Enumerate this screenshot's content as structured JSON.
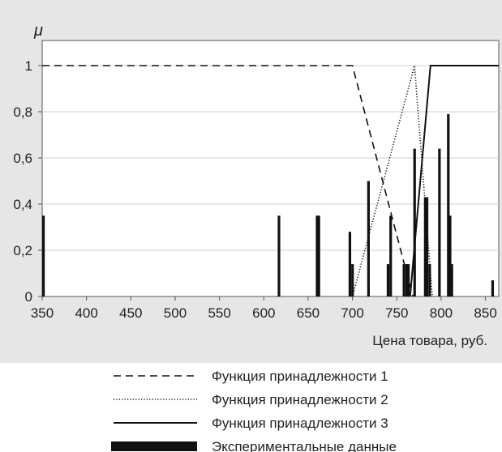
{
  "chart_data": {
    "type": "line",
    "ylabel": "μ",
    "xlabel": "Цена товара, руб.",
    "xlim": [
      350,
      865
    ],
    "ylim": [
      0,
      1.05
    ],
    "x_ticks": [
      350,
      400,
      450,
      500,
      550,
      600,
      650,
      700,
      750,
      800,
      850
    ],
    "y_ticks": [
      {
        "value": 0,
        "label": "0"
      },
      {
        "value": 0.2,
        "label": "0,2"
      },
      {
        "value": 0.4,
        "label": "0,4"
      },
      {
        "value": 0.6,
        "label": "0,6"
      },
      {
        "value": 0.8,
        "label": "0,8"
      },
      {
        "value": 1,
        "label": "1"
      }
    ],
    "grid": "horizontal",
    "legend_position": "bottom",
    "series": [
      {
        "name": "Функция принадлежности 1",
        "style": "dashed",
        "x": [
          350,
          700,
          768
        ],
        "y": [
          1,
          1,
          0
        ]
      },
      {
        "name": "Функция принадлежности 2",
        "style": "dotted",
        "x": [
          700,
          770,
          790
        ],
        "y": [
          0,
          1,
          0
        ]
      },
      {
        "name": "Функция принадлежности 3",
        "style": "solid",
        "x": [
          765,
          788,
          865
        ],
        "y": [
          0,
          1,
          1
        ]
      }
    ],
    "bars": {
      "name": "Экспериментальные данные",
      "x": [
        350,
        617,
        660,
        662,
        697,
        700,
        718,
        740,
        743,
        758,
        761,
        763,
        770,
        782,
        784,
        787,
        798,
        808,
        810,
        812,
        858
      ],
      "values": [
        0.35,
        0.35,
        0.35,
        0.35,
        0.28,
        0.14,
        0.5,
        0.14,
        0.35,
        0.14,
        0.14,
        0.14,
        0.64,
        0.43,
        0.43,
        0.14,
        0.64,
        0.79,
        0.35,
        0.14,
        0.07
      ]
    }
  }
}
